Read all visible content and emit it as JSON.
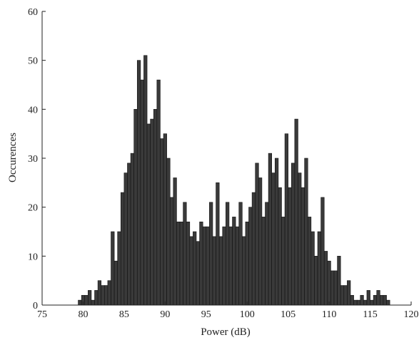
{
  "chart_data": {
    "type": "bar",
    "title": "",
    "xlabel": "Power (dB)",
    "ylabel": "Occurences",
    "xlim": [
      75,
      120
    ],
    "ylim": [
      0,
      60
    ],
    "xticks": [
      75,
      80,
      85,
      90,
      95,
      100,
      105,
      110,
      115,
      120
    ],
    "yticks": [
      0,
      10,
      20,
      30,
      40,
      50,
      60
    ],
    "grid": false,
    "legend": "none",
    "bar_color": "#3a3a3a",
    "bin_width": 0.4,
    "x": [
      79.6,
      80.0,
      80.4,
      80.8,
      81.2,
      81.6,
      82.0,
      82.4,
      82.8,
      83.2,
      83.6,
      84.0,
      84.4,
      84.8,
      85.2,
      85.6,
      86.0,
      86.4,
      86.8,
      87.2,
      87.6,
      88.0,
      88.4,
      88.8,
      89.2,
      89.6,
      90.0,
      90.4,
      90.8,
      91.2,
      91.6,
      92.0,
      92.4,
      92.8,
      93.2,
      93.6,
      94.0,
      94.4,
      94.8,
      95.2,
      95.6,
      96.0,
      96.4,
      96.8,
      97.2,
      97.6,
      98.0,
      98.4,
      98.8,
      99.2,
      99.6,
      100.0,
      100.4,
      100.8,
      101.2,
      101.6,
      102.0,
      102.4,
      102.8,
      103.2,
      103.6,
      104.0,
      104.4,
      104.8,
      105.2,
      105.6,
      106.0,
      106.4,
      106.8,
      107.2,
      107.6,
      108.0,
      108.4,
      108.8,
      109.2,
      109.6,
      110.0,
      110.4,
      110.8,
      111.2,
      111.6,
      112.0,
      112.4,
      112.8,
      113.2,
      113.6,
      114.0,
      114.4,
      114.8,
      115.2,
      115.6,
      116.0,
      116.4,
      116.8,
      117.2
    ],
    "values": [
      1,
      2,
      2,
      3,
      1,
      3,
      5,
      4,
      4,
      5,
      15,
      9,
      15,
      23,
      27,
      29,
      31,
      40,
      50,
      46,
      51,
      37,
      38,
      40,
      46,
      34,
      35,
      30,
      22,
      26,
      17,
      17,
      21,
      17,
      14,
      15,
      13,
      17,
      16,
      16,
      21,
      14,
      25,
      14,
      16,
      21,
      16,
      18,
      16,
      21,
      14,
      17,
      20,
      23,
      29,
      26,
      18,
      21,
      31,
      27,
      30,
      24,
      18,
      35,
      24,
      29,
      38,
      27,
      24,
      30,
      18,
      15,
      10,
      15,
      22,
      11,
      9,
      7,
      7,
      10,
      4,
      4,
      5,
      2,
      1,
      1,
      2,
      1,
      3,
      1,
      2,
      3,
      2,
      2,
      1
    ]
  }
}
